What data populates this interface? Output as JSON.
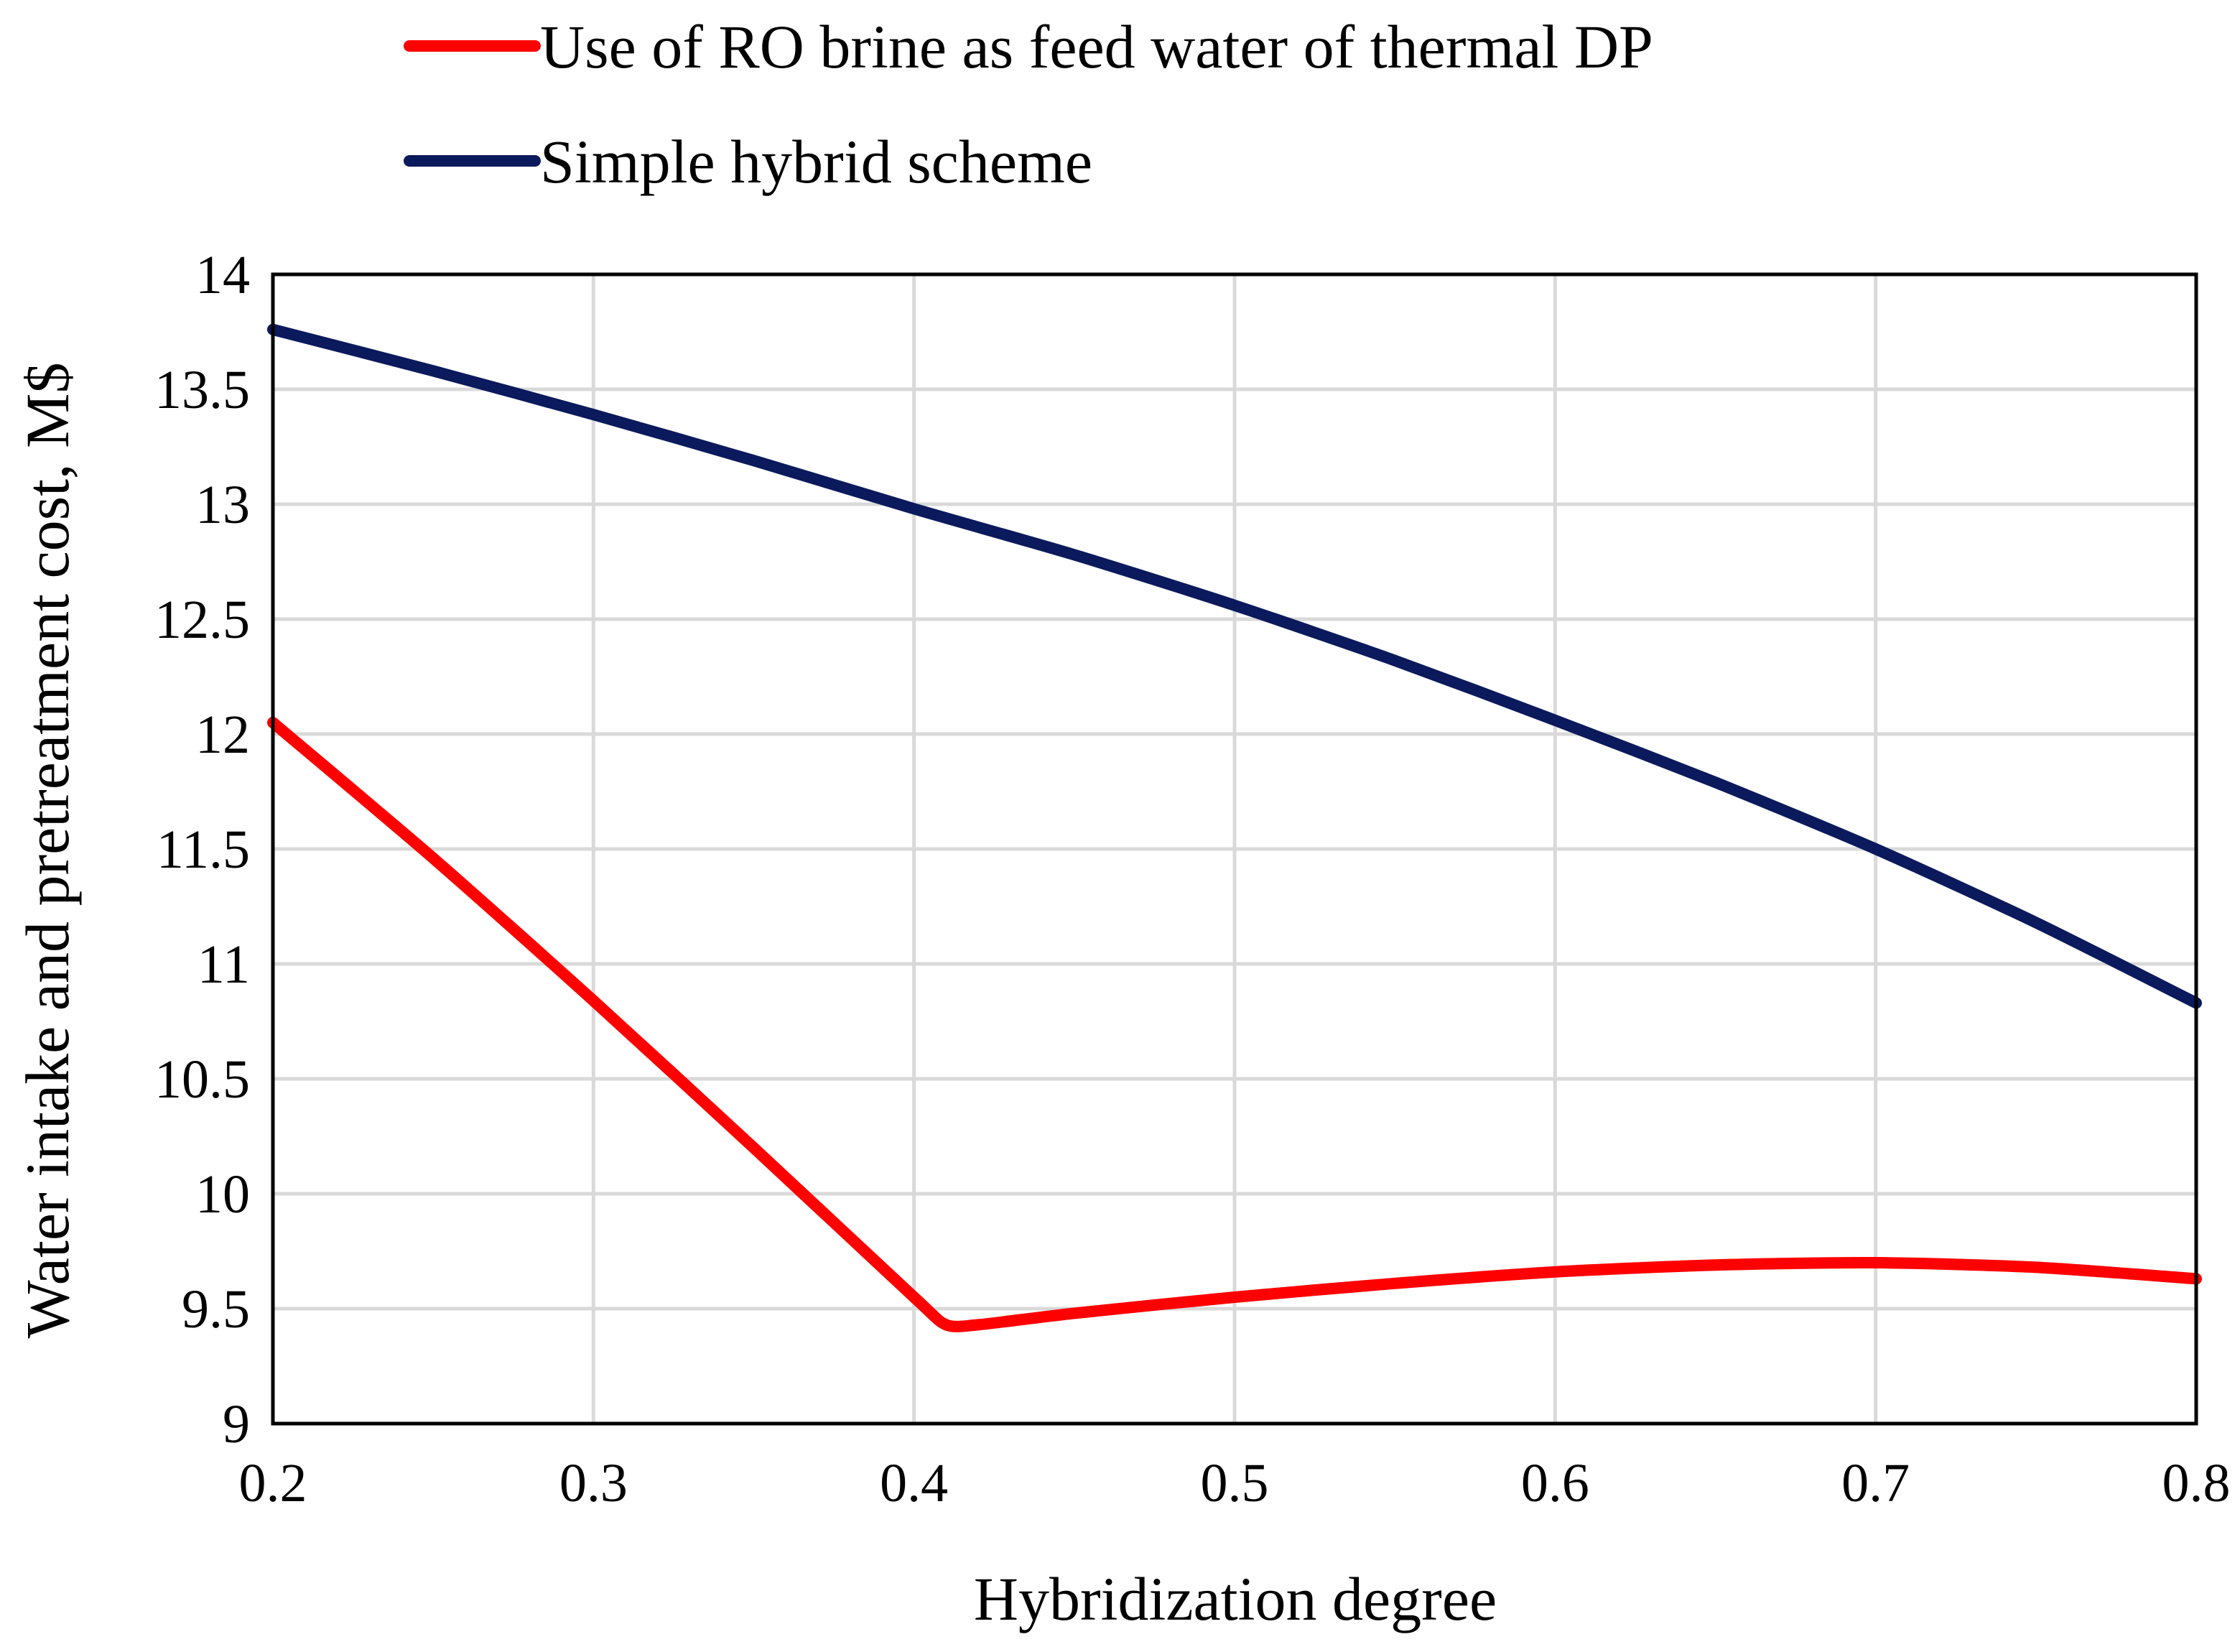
{
  "chart_data": {
    "type": "line",
    "title": "",
    "xlabel": "Hybridization degree",
    "ylabel": "Water intake and pretreatment cost, M$",
    "xlim": [
      0.2,
      0.8
    ],
    "ylim": [
      9,
      14
    ],
    "x_ticks": [
      "0.2",
      "0.3",
      "0.4",
      "0.5",
      "0.6",
      "0.7",
      "0.8"
    ],
    "y_ticks": [
      "9",
      "9.5",
      "10",
      "10.5",
      "11",
      "11.5",
      "12",
      "12.5",
      "13",
      "13.5",
      "14"
    ],
    "grid": true,
    "legend_position": "top",
    "series": [
      {
        "name": "Use of RO brine as feed water of thermal DP",
        "color": "#ff0000",
        "x": [
          0.2,
          0.25,
          0.3,
          0.35,
          0.4,
          0.41,
          0.42,
          0.45,
          0.5,
          0.55,
          0.6,
          0.65,
          0.7,
          0.75,
          0.8
        ],
        "y": [
          12.05,
          11.46,
          10.84,
          10.2,
          9.55,
          9.43,
          9.43,
          9.48,
          9.55,
          9.61,
          9.66,
          9.69,
          9.7,
          9.68,
          9.63
        ]
      },
      {
        "name": "Simple hybrid scheme",
        "color": "#0a1a5c",
        "x": [
          0.2,
          0.25,
          0.3,
          0.35,
          0.4,
          0.45,
          0.5,
          0.55,
          0.6,
          0.65,
          0.7,
          0.75,
          0.8
        ],
        "y": [
          13.76,
          13.58,
          13.39,
          13.19,
          12.98,
          12.78,
          12.56,
          12.32,
          12.06,
          11.79,
          11.5,
          11.18,
          10.83
        ]
      }
    ]
  }
}
